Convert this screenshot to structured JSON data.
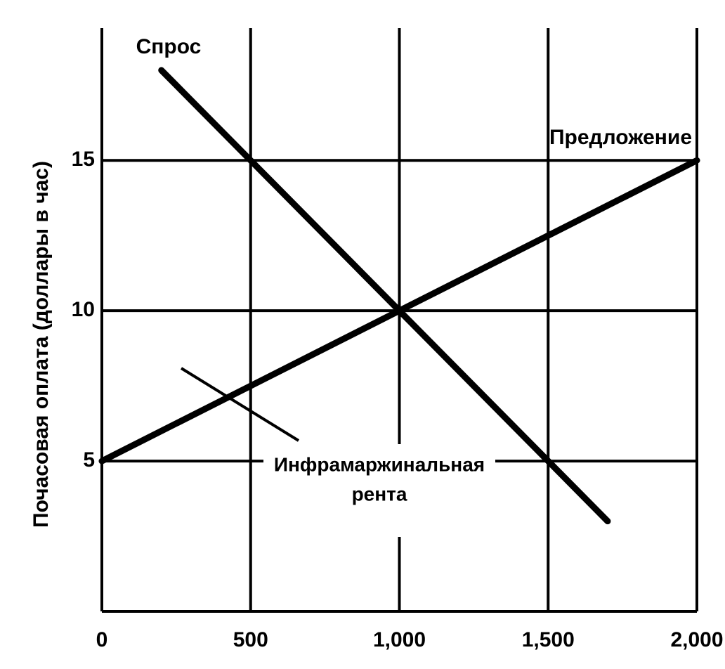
{
  "chart_data": {
    "type": "line",
    "y_label": "Почасовая оплата (доллары в час)",
    "xlim": [
      0,
      2000
    ],
    "ylim": [
      0,
      19.4
    ],
    "xticks": [
      0,
      500,
      {
        "value": 1000,
        "label": "1,000"
      },
      {
        "value": 1500,
        "label": "1,500"
      },
      {
        "value": 2000,
        "label": "2,000"
      }
    ],
    "yticks": [
      5,
      10,
      15
    ],
    "grid": true,
    "series": [
      {
        "name": "Спрос",
        "color": "#000000",
        "x": [
          200,
          500,
          1000,
          1500,
          1700
        ],
        "values": [
          18,
          15,
          10,
          5,
          3
        ]
      },
      {
        "name": "Предложение",
        "color": "#000000",
        "x": [
          0,
          1000,
          2000
        ],
        "values": [
          5,
          10,
          15
        ]
      }
    ],
    "annotation": [
      "Инфрамаржинальная",
      "рента"
    ]
  }
}
